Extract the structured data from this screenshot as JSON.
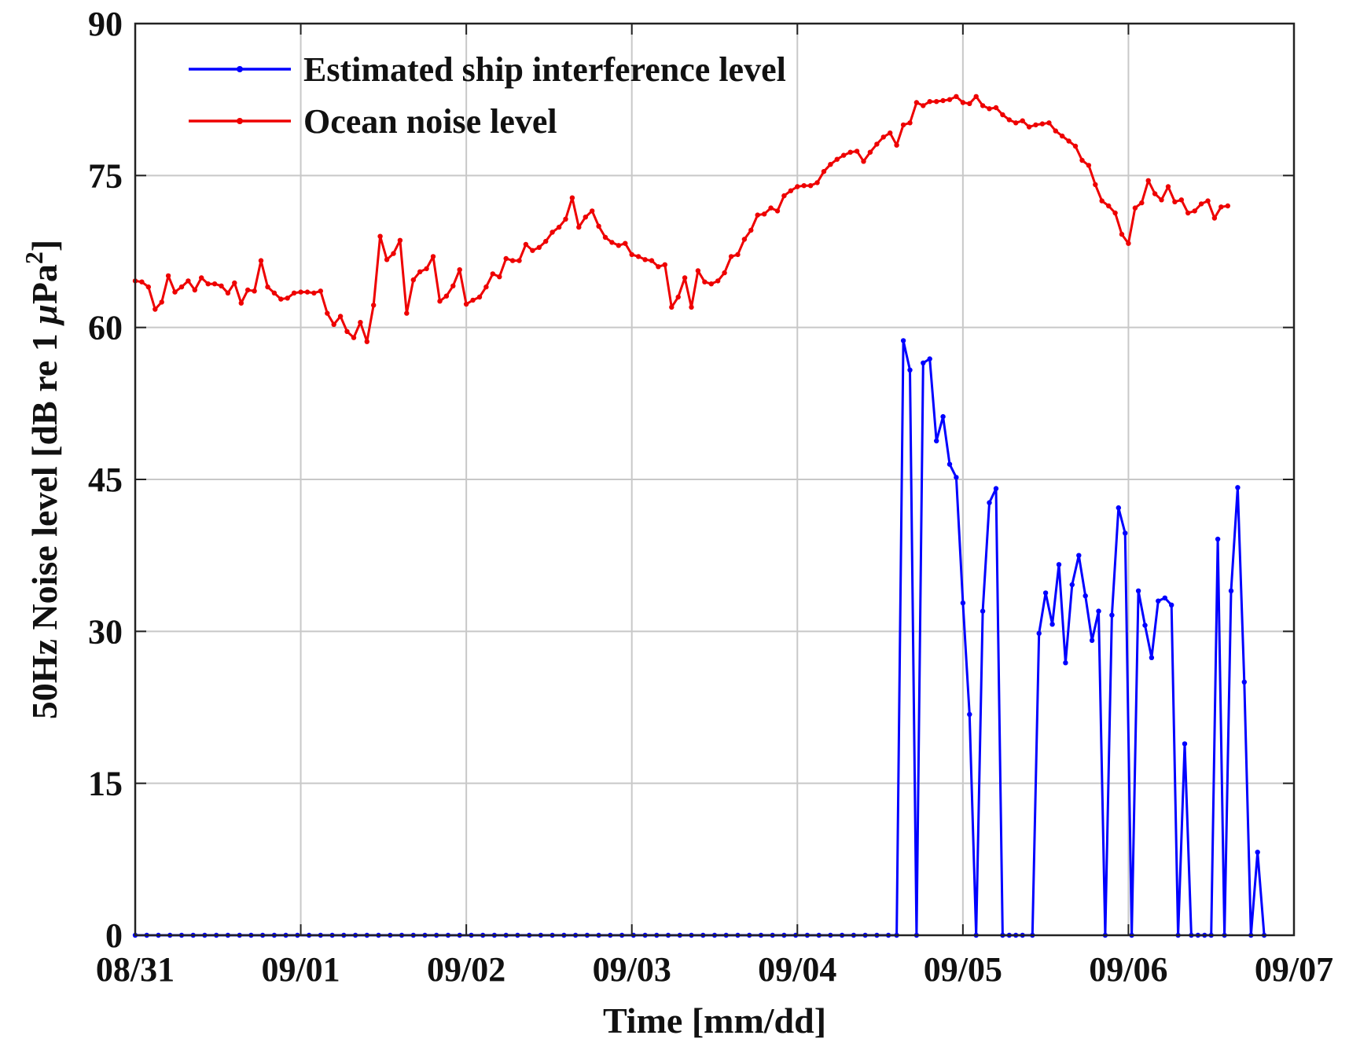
{
  "chart_data": {
    "type": "line",
    "xlabel": "Time [mm/dd]",
    "ylabel": "50Hz Noise level [dB re 1 μPa²]",
    "ylabel_parts": {
      "before": "50Hz Noise level [dB re 1 ",
      "mu": "μ",
      "unit": "Pa",
      "sup": "2",
      "after": "]"
    },
    "x_tick_labels": [
      "08/31",
      "09/01",
      "09/02",
      "09/03",
      "09/04",
      "09/05",
      "09/06",
      "09/07"
    ],
    "xlim": [
      0,
      7
    ],
    "ylim": [
      0,
      90
    ],
    "y_ticks": [
      0,
      15,
      30,
      45,
      60,
      75,
      90
    ],
    "grid": true,
    "legend_position": "top-left",
    "series": [
      {
        "name": "Estimated ship interference level",
        "color": "#0000ff",
        "points": [
          [
            0.0,
            0
          ],
          [
            0.07,
            0
          ],
          [
            0.14,
            0
          ],
          [
            0.21,
            0
          ],
          [
            0.28,
            0
          ],
          [
            0.35,
            0
          ],
          [
            0.42,
            0
          ],
          [
            0.49,
            0
          ],
          [
            0.56,
            0
          ],
          [
            0.63,
            0
          ],
          [
            0.7,
            0
          ],
          [
            0.77,
            0
          ],
          [
            0.84,
            0
          ],
          [
            0.91,
            0
          ],
          [
            0.98,
            0
          ],
          [
            1.05,
            0
          ],
          [
            1.12,
            0
          ],
          [
            1.19,
            0
          ],
          [
            1.26,
            0
          ],
          [
            1.33,
            0
          ],
          [
            1.4,
            0
          ],
          [
            1.47,
            0
          ],
          [
            1.54,
            0
          ],
          [
            1.61,
            0
          ],
          [
            1.68,
            0
          ],
          [
            1.75,
            0
          ],
          [
            1.82,
            0
          ],
          [
            1.89,
            0
          ],
          [
            1.96,
            0
          ],
          [
            2.03,
            0
          ],
          [
            2.1,
            0
          ],
          [
            2.17,
            0
          ],
          [
            2.24,
            0
          ],
          [
            2.31,
            0
          ],
          [
            2.38,
            0
          ],
          [
            2.45,
            0
          ],
          [
            2.52,
            0
          ],
          [
            2.59,
            0
          ],
          [
            2.66,
            0
          ],
          [
            2.73,
            0
          ],
          [
            2.8,
            0
          ],
          [
            2.87,
            0
          ],
          [
            2.94,
            0
          ],
          [
            3.01,
            0
          ],
          [
            3.08,
            0
          ],
          [
            3.15,
            0
          ],
          [
            3.22,
            0
          ],
          [
            3.29,
            0
          ],
          [
            3.36,
            0
          ],
          [
            3.43,
            0
          ],
          [
            3.5,
            0
          ],
          [
            3.57,
            0
          ],
          [
            3.64,
            0
          ],
          [
            3.71,
            0
          ],
          [
            3.78,
            0
          ],
          [
            3.85,
            0
          ],
          [
            3.92,
            0
          ],
          [
            3.99,
            0
          ],
          [
            4.06,
            0
          ],
          [
            4.13,
            0
          ],
          [
            4.2,
            0
          ],
          [
            4.27,
            0
          ],
          [
            4.34,
            0
          ],
          [
            4.41,
            0
          ],
          [
            4.48,
            0
          ],
          [
            4.55,
            0
          ],
          [
            4.6,
            0
          ],
          [
            4.64,
            58.7
          ],
          [
            4.68,
            55.8
          ],
          [
            4.72,
            0
          ],
          [
            4.76,
            56.5
          ],
          [
            4.8,
            56.9
          ],
          [
            4.84,
            48.8
          ],
          [
            4.88,
            51.2
          ],
          [
            4.92,
            46.5
          ],
          [
            4.96,
            45.2
          ],
          [
            5.0,
            32.8
          ],
          [
            5.04,
            21.8
          ],
          [
            5.08,
            0
          ],
          [
            5.12,
            32.0
          ],
          [
            5.16,
            42.7
          ],
          [
            5.2,
            44.1
          ],
          [
            5.24,
            0
          ],
          [
            5.28,
            0
          ],
          [
            5.32,
            0
          ],
          [
            5.36,
            0
          ],
          [
            5.42,
            0
          ],
          [
            5.46,
            29.8
          ],
          [
            5.5,
            33.8
          ],
          [
            5.54,
            30.7
          ],
          [
            5.58,
            36.6
          ],
          [
            5.62,
            26.9
          ],
          [
            5.66,
            34.6
          ],
          [
            5.7,
            37.5
          ],
          [
            5.74,
            33.5
          ],
          [
            5.78,
            29.1
          ],
          [
            5.82,
            32.0
          ],
          [
            5.86,
            0
          ],
          [
            5.9,
            31.6
          ],
          [
            5.94,
            42.2
          ],
          [
            5.98,
            39.7
          ],
          [
            6.02,
            0
          ],
          [
            6.06,
            34.0
          ],
          [
            6.1,
            30.6
          ],
          [
            6.14,
            27.4
          ],
          [
            6.18,
            33.0
          ],
          [
            6.22,
            33.3
          ],
          [
            6.26,
            32.6
          ],
          [
            6.3,
            0
          ],
          [
            6.34,
            18.9
          ],
          [
            6.38,
            0
          ],
          [
            6.42,
            0
          ],
          [
            6.46,
            0
          ],
          [
            6.5,
            0
          ],
          [
            6.54,
            39.1
          ],
          [
            6.58,
            0
          ],
          [
            6.62,
            34.0
          ],
          [
            6.66,
            44.2
          ],
          [
            6.7,
            25.0
          ],
          [
            6.74,
            0
          ],
          [
            6.78,
            8.2
          ],
          [
            6.82,
            0
          ]
        ]
      },
      {
        "name": "Ocean noise level",
        "color": "#ee0000",
        "points": [
          [
            0.0,
            64.6
          ],
          [
            0.04,
            64.5
          ],
          [
            0.08,
            64.0
          ],
          [
            0.12,
            61.8
          ],
          [
            0.16,
            62.5
          ],
          [
            0.2,
            65.1
          ],
          [
            0.24,
            63.5
          ],
          [
            0.28,
            64.0
          ],
          [
            0.32,
            64.6
          ],
          [
            0.36,
            63.7
          ],
          [
            0.4,
            64.9
          ],
          [
            0.44,
            64.3
          ],
          [
            0.48,
            64.3
          ],
          [
            0.52,
            64.1
          ],
          [
            0.56,
            63.4
          ],
          [
            0.6,
            64.4
          ],
          [
            0.64,
            62.4
          ],
          [
            0.68,
            63.7
          ],
          [
            0.72,
            63.6
          ],
          [
            0.76,
            66.6
          ],
          [
            0.8,
            64.0
          ],
          [
            0.84,
            63.4
          ],
          [
            0.88,
            62.8
          ],
          [
            0.92,
            62.9
          ],
          [
            0.96,
            63.4
          ],
          [
            1.0,
            63.5
          ],
          [
            1.04,
            63.5
          ],
          [
            1.08,
            63.4
          ],
          [
            1.12,
            63.6
          ],
          [
            1.16,
            61.4
          ],
          [
            1.2,
            60.3
          ],
          [
            1.24,
            61.1
          ],
          [
            1.28,
            59.6
          ],
          [
            1.32,
            59.0
          ],
          [
            1.36,
            60.5
          ],
          [
            1.4,
            58.6
          ],
          [
            1.44,
            62.2
          ],
          [
            1.48,
            69.0
          ],
          [
            1.52,
            66.7
          ],
          [
            1.56,
            67.3
          ],
          [
            1.6,
            68.6
          ],
          [
            1.64,
            61.4
          ],
          [
            1.68,
            64.7
          ],
          [
            1.72,
            65.5
          ],
          [
            1.76,
            65.8
          ],
          [
            1.8,
            67.0
          ],
          [
            1.84,
            62.6
          ],
          [
            1.88,
            63.1
          ],
          [
            1.92,
            64.1
          ],
          [
            1.96,
            65.7
          ],
          [
            2.0,
            62.3
          ],
          [
            2.04,
            62.7
          ],
          [
            2.08,
            63.0
          ],
          [
            2.12,
            64.0
          ],
          [
            2.16,
            65.3
          ],
          [
            2.2,
            65.0
          ],
          [
            2.24,
            66.8
          ],
          [
            2.28,
            66.6
          ],
          [
            2.32,
            66.6
          ],
          [
            2.36,
            68.2
          ],
          [
            2.4,
            67.6
          ],
          [
            2.44,
            67.9
          ],
          [
            2.48,
            68.5
          ],
          [
            2.52,
            69.4
          ],
          [
            2.56,
            69.9
          ],
          [
            2.6,
            70.7
          ],
          [
            2.64,
            72.8
          ],
          [
            2.68,
            69.9
          ],
          [
            2.72,
            70.9
          ],
          [
            2.76,
            71.5
          ],
          [
            2.8,
            70.0
          ],
          [
            2.84,
            68.9
          ],
          [
            2.88,
            68.4
          ],
          [
            2.92,
            68.1
          ],
          [
            2.96,
            68.3
          ],
          [
            3.0,
            67.2
          ],
          [
            3.04,
            67.0
          ],
          [
            3.08,
            66.7
          ],
          [
            3.12,
            66.6
          ],
          [
            3.16,
            66.0
          ],
          [
            3.2,
            66.2
          ],
          [
            3.24,
            62.0
          ],
          [
            3.28,
            63.0
          ],
          [
            3.32,
            64.9
          ],
          [
            3.36,
            62.0
          ],
          [
            3.4,
            65.6
          ],
          [
            3.44,
            64.5
          ],
          [
            3.48,
            64.3
          ],
          [
            3.52,
            64.6
          ],
          [
            3.56,
            65.4
          ],
          [
            3.6,
            67.0
          ],
          [
            3.64,
            67.2
          ],
          [
            3.68,
            68.7
          ],
          [
            3.72,
            69.6
          ],
          [
            3.76,
            71.1
          ],
          [
            3.8,
            71.2
          ],
          [
            3.84,
            71.8
          ],
          [
            3.88,
            71.5
          ],
          [
            3.92,
            73.0
          ],
          [
            3.96,
            73.5
          ],
          [
            4.0,
            73.9
          ],
          [
            4.04,
            74.0
          ],
          [
            4.08,
            74.0
          ],
          [
            4.12,
            74.3
          ],
          [
            4.16,
            75.4
          ],
          [
            4.2,
            76.1
          ],
          [
            4.24,
            76.6
          ],
          [
            4.28,
            77.0
          ],
          [
            4.32,
            77.3
          ],
          [
            4.36,
            77.4
          ],
          [
            4.4,
            76.4
          ],
          [
            4.44,
            77.3
          ],
          [
            4.48,
            78.1
          ],
          [
            4.52,
            78.8
          ],
          [
            4.56,
            79.2
          ],
          [
            4.6,
            78.0
          ],
          [
            4.64,
            80.0
          ],
          [
            4.68,
            80.2
          ],
          [
            4.72,
            82.2
          ],
          [
            4.76,
            81.9
          ],
          [
            4.8,
            82.3
          ],
          [
            4.84,
            82.3
          ],
          [
            4.88,
            82.4
          ],
          [
            4.92,
            82.5
          ],
          [
            4.96,
            82.8
          ],
          [
            5.0,
            82.2
          ],
          [
            5.04,
            82.1
          ],
          [
            5.08,
            82.8
          ],
          [
            5.12,
            81.9
          ],
          [
            5.16,
            81.6
          ],
          [
            5.2,
            81.7
          ],
          [
            5.24,
            81.0
          ],
          [
            5.28,
            80.5
          ],
          [
            5.32,
            80.2
          ],
          [
            5.36,
            80.4
          ],
          [
            5.4,
            79.8
          ],
          [
            5.44,
            80.0
          ],
          [
            5.48,
            80.1
          ],
          [
            5.52,
            80.2
          ],
          [
            5.56,
            79.4
          ],
          [
            5.6,
            78.9
          ],
          [
            5.64,
            78.4
          ],
          [
            5.68,
            77.9
          ],
          [
            5.72,
            76.5
          ],
          [
            5.76,
            76.0
          ],
          [
            5.8,
            74.1
          ],
          [
            5.84,
            72.5
          ],
          [
            5.88,
            72.0
          ],
          [
            5.92,
            71.3
          ],
          [
            5.96,
            69.2
          ],
          [
            6.0,
            68.3
          ],
          [
            6.04,
            71.8
          ],
          [
            6.08,
            72.3
          ],
          [
            6.12,
            74.5
          ],
          [
            6.16,
            73.2
          ],
          [
            6.2,
            72.6
          ],
          [
            6.24,
            73.9
          ],
          [
            6.28,
            72.4
          ],
          [
            6.32,
            72.6
          ],
          [
            6.36,
            71.3
          ],
          [
            6.4,
            71.5
          ],
          [
            6.44,
            72.2
          ],
          [
            6.48,
            72.5
          ],
          [
            6.52,
            70.8
          ],
          [
            6.56,
            71.9
          ],
          [
            6.6,
            72.0
          ]
        ]
      }
    ]
  }
}
